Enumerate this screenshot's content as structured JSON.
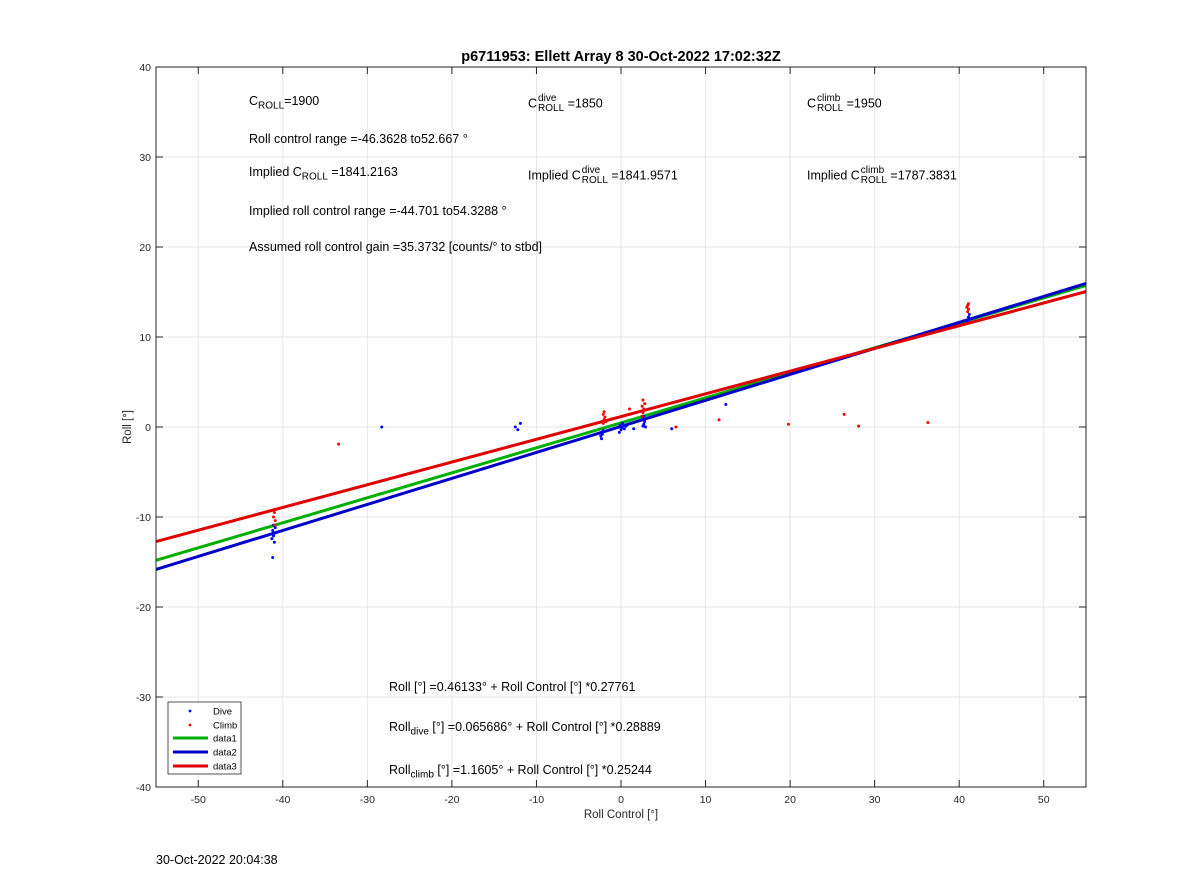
{
  "chart_data": {
    "type": "scatter",
    "title": "p6711953: Ellett Array 8 30-Oct-2022 17:02:32Z",
    "xlabel": "Roll Control [°]",
    "ylabel": "Roll [°]",
    "xlim": [
      -55,
      55
    ],
    "ylim": [
      -40,
      40
    ],
    "xticks": [
      -50,
      -40,
      -30,
      -20,
      -10,
      0,
      10,
      20,
      30,
      40,
      50
    ],
    "yticks": [
      -40,
      -30,
      -20,
      -10,
      0,
      10,
      20,
      30,
      40
    ],
    "grid": true,
    "legend_position": "bottom-left",
    "series": [
      {
        "name": "Dive",
        "kind": "points",
        "color": "#0000ff",
        "x": [
          -41.2,
          -41.0,
          -41.3,
          -41.1,
          -41.0,
          -41.2,
          -40.9,
          -41.1,
          -28.3,
          -12.5,
          -12.2,
          -11.9,
          -2.3,
          -2.4,
          -2.2,
          -2.3,
          -2.1,
          -0.2,
          0.0,
          0.1,
          -0.1,
          0.2,
          0.4,
          0.6,
          1.5,
          2.6,
          2.7,
          2.8,
          2.6,
          2.7,
          2.9,
          6.0,
          12.4,
          41.0,
          41.1,
          41.2
        ],
        "y": [
          -14.5,
          -12.8,
          -12.4,
          -12.1,
          -11.8,
          -11.5,
          -11.2,
          -10.9,
          0.0,
          0.0,
          -0.3,
          0.4,
          -1.3,
          -1.0,
          -0.8,
          -0.6,
          -0.4,
          -0.6,
          -0.3,
          -0.1,
          0.2,
          0.4,
          -0.2,
          0.1,
          -0.2,
          0.1,
          0.3,
          0.6,
          0.9,
          1.2,
          0.0,
          -0.2,
          2.5,
          11.8,
          12.2,
          12.5
        ]
      },
      {
        "name": "Climb",
        "kind": "points",
        "color": "#ff0000",
        "x": [
          -41.0,
          -41.1,
          -40.9,
          -41.0,
          -33.4,
          -2.1,
          -2.0,
          -1.9,
          -2.1,
          -2.0,
          -1.8,
          1.0,
          2.5,
          2.6,
          2.7,
          2.5,
          2.8,
          2.6,
          2.7,
          6.5,
          11.6,
          19.8,
          26.4,
          28.1,
          36.3,
          41.0,
          41.1,
          40.9,
          41.0,
          41.1
        ],
        "y": [
          -9.5,
          -10.0,
          -10.4,
          -10.9,
          -1.9,
          0.4,
          0.8,
          1.1,
          1.4,
          1.7,
          0.6,
          2.0,
          1.2,
          1.6,
          2.0,
          2.3,
          2.6,
          3.0,
          1.9,
          0.0,
          0.8,
          0.3,
          1.4,
          0.1,
          0.5,
          12.8,
          13.1,
          13.3,
          13.5,
          13.7
        ]
      },
      {
        "name": "data1",
        "kind": "line",
        "color": "#00b000",
        "intercept": 0.46133,
        "slope": 0.27761
      },
      {
        "name": "data2",
        "kind": "line",
        "color": "#0000c8",
        "intercept": 0.065686,
        "slope": 0.28889
      },
      {
        "name": "data3",
        "kind": "line",
        "color": "#e00000",
        "intercept": 1.1605,
        "slope": 0.25244
      }
    ]
  },
  "annotations": {
    "c_roll": {
      "base": "C",
      "sub": "ROLL",
      "value": "=1900"
    },
    "c_dive": {
      "base": "C",
      "sup": "dive",
      "sub": "ROLL",
      "value": " =1850"
    },
    "c_climb": {
      "base": "C",
      "sup": "climb",
      "sub": "ROLL",
      "value": " =1950"
    },
    "range": "Roll control range =-46.3628 to52.667 °",
    "implied_c": {
      "prefix": "Implied C",
      "sub": "ROLL",
      "value": " =1841.2163"
    },
    "implied_dive": {
      "prefix": "Implied C",
      "sup": "dive",
      "sub": "ROLL",
      "value": " =1841.9571"
    },
    "implied_climb": {
      "prefix": "Implied C",
      "sup": "climb",
      "sub": "ROLL",
      "value": " =1787.3831"
    },
    "implied_range": "Implied roll control range =-44.701 to54.3288 °",
    "gain": "Assumed roll control gain =35.3732 [counts/° to stbd]",
    "fit_all": "Roll [°] =0.46133° + Roll Control [°] *0.27761",
    "fit_dive": {
      "prefix": "Roll",
      "sub": "dive",
      "value": " [°] =0.065686° + Roll Control [°] *0.28889"
    },
    "fit_climb": {
      "prefix": "Roll",
      "sub": "climb",
      "value": " [°] =1.1605° + Roll Control [°] *0.25244"
    }
  },
  "timestamp": "30-Oct-2022 20:04:38"
}
